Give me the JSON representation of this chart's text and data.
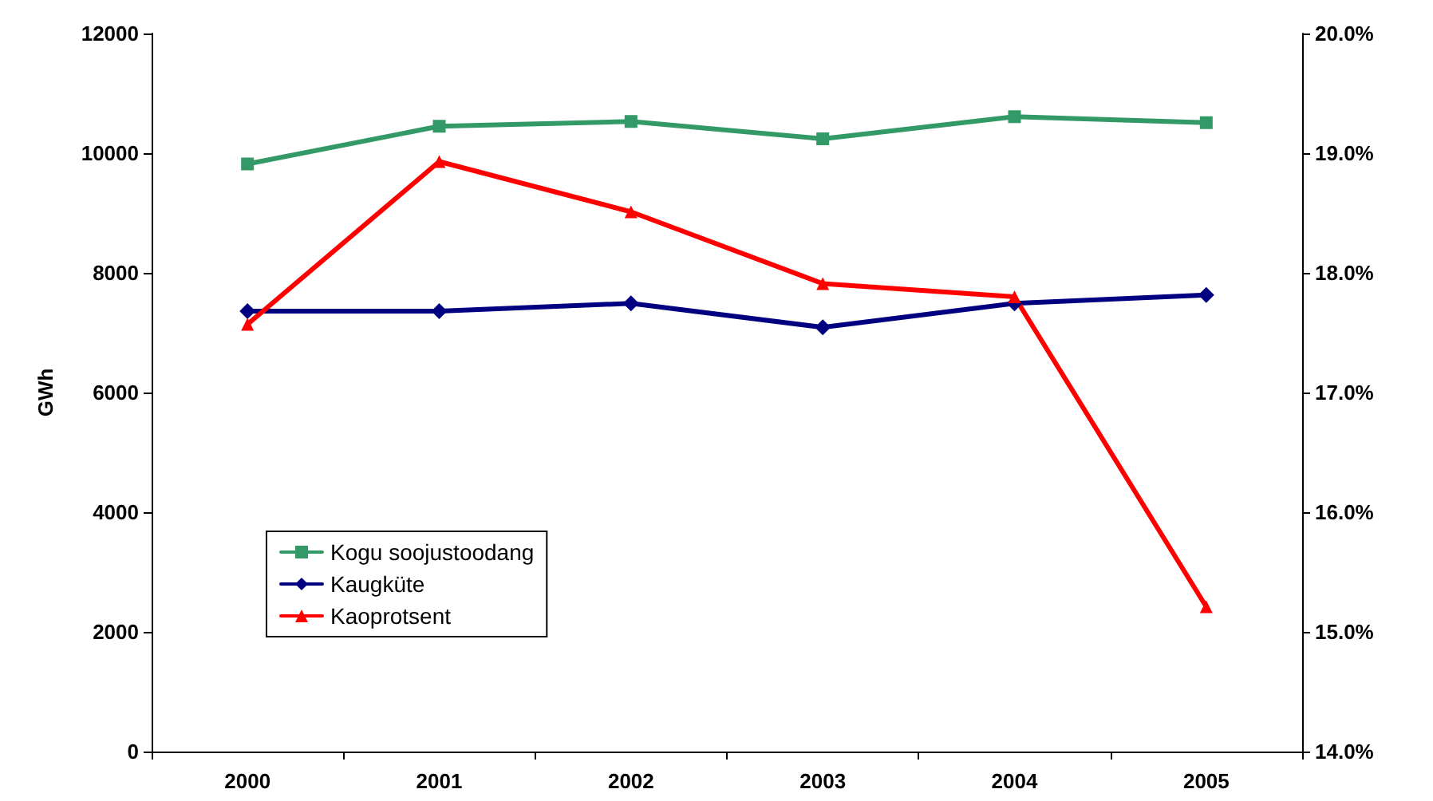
{
  "chart_data": {
    "type": "line",
    "ylabel": "GWh",
    "categories": [
      "2000",
      "2001",
      "2002",
      "2003",
      "2004",
      "2005"
    ],
    "series": [
      {
        "name": "Kogu soojustoodang",
        "color": "#339966",
        "marker": "square",
        "values": [
          9820,
          10450,
          10530,
          10240,
          10610,
          10510
        ]
      },
      {
        "name": "Kaugküte",
        "color": "#000080",
        "marker": "diamond",
        "values": [
          7360,
          7360,
          7490,
          7090,
          7490,
          7630
        ]
      },
      {
        "name": "Kaoprotsent",
        "color": "#ff0000",
        "marker": "triangle",
        "axis": "y2",
        "values": [
          17.57,
          18.93,
          18.51,
          17.91,
          17.8,
          15.21
        ]
      }
    ],
    "ylim": [
      0,
      12000
    ],
    "yticks": [
      0,
      2000,
      4000,
      6000,
      8000,
      10000,
      12000
    ],
    "y2lim": [
      14,
      20
    ],
    "y2ticks": [
      {
        "value": 14,
        "label": "14.0%"
      },
      {
        "value": 15,
        "label": "15.0%"
      },
      {
        "value": 16,
        "label": "16.0%"
      },
      {
        "value": 17,
        "label": "17.0%"
      },
      {
        "value": 18,
        "label": "18.0%"
      },
      {
        "value": 19,
        "label": "19.0%"
      },
      {
        "value": 20,
        "label": "20.0%"
      }
    ],
    "grid": false,
    "legend": "bottom left",
    "line_style": "solid"
  }
}
